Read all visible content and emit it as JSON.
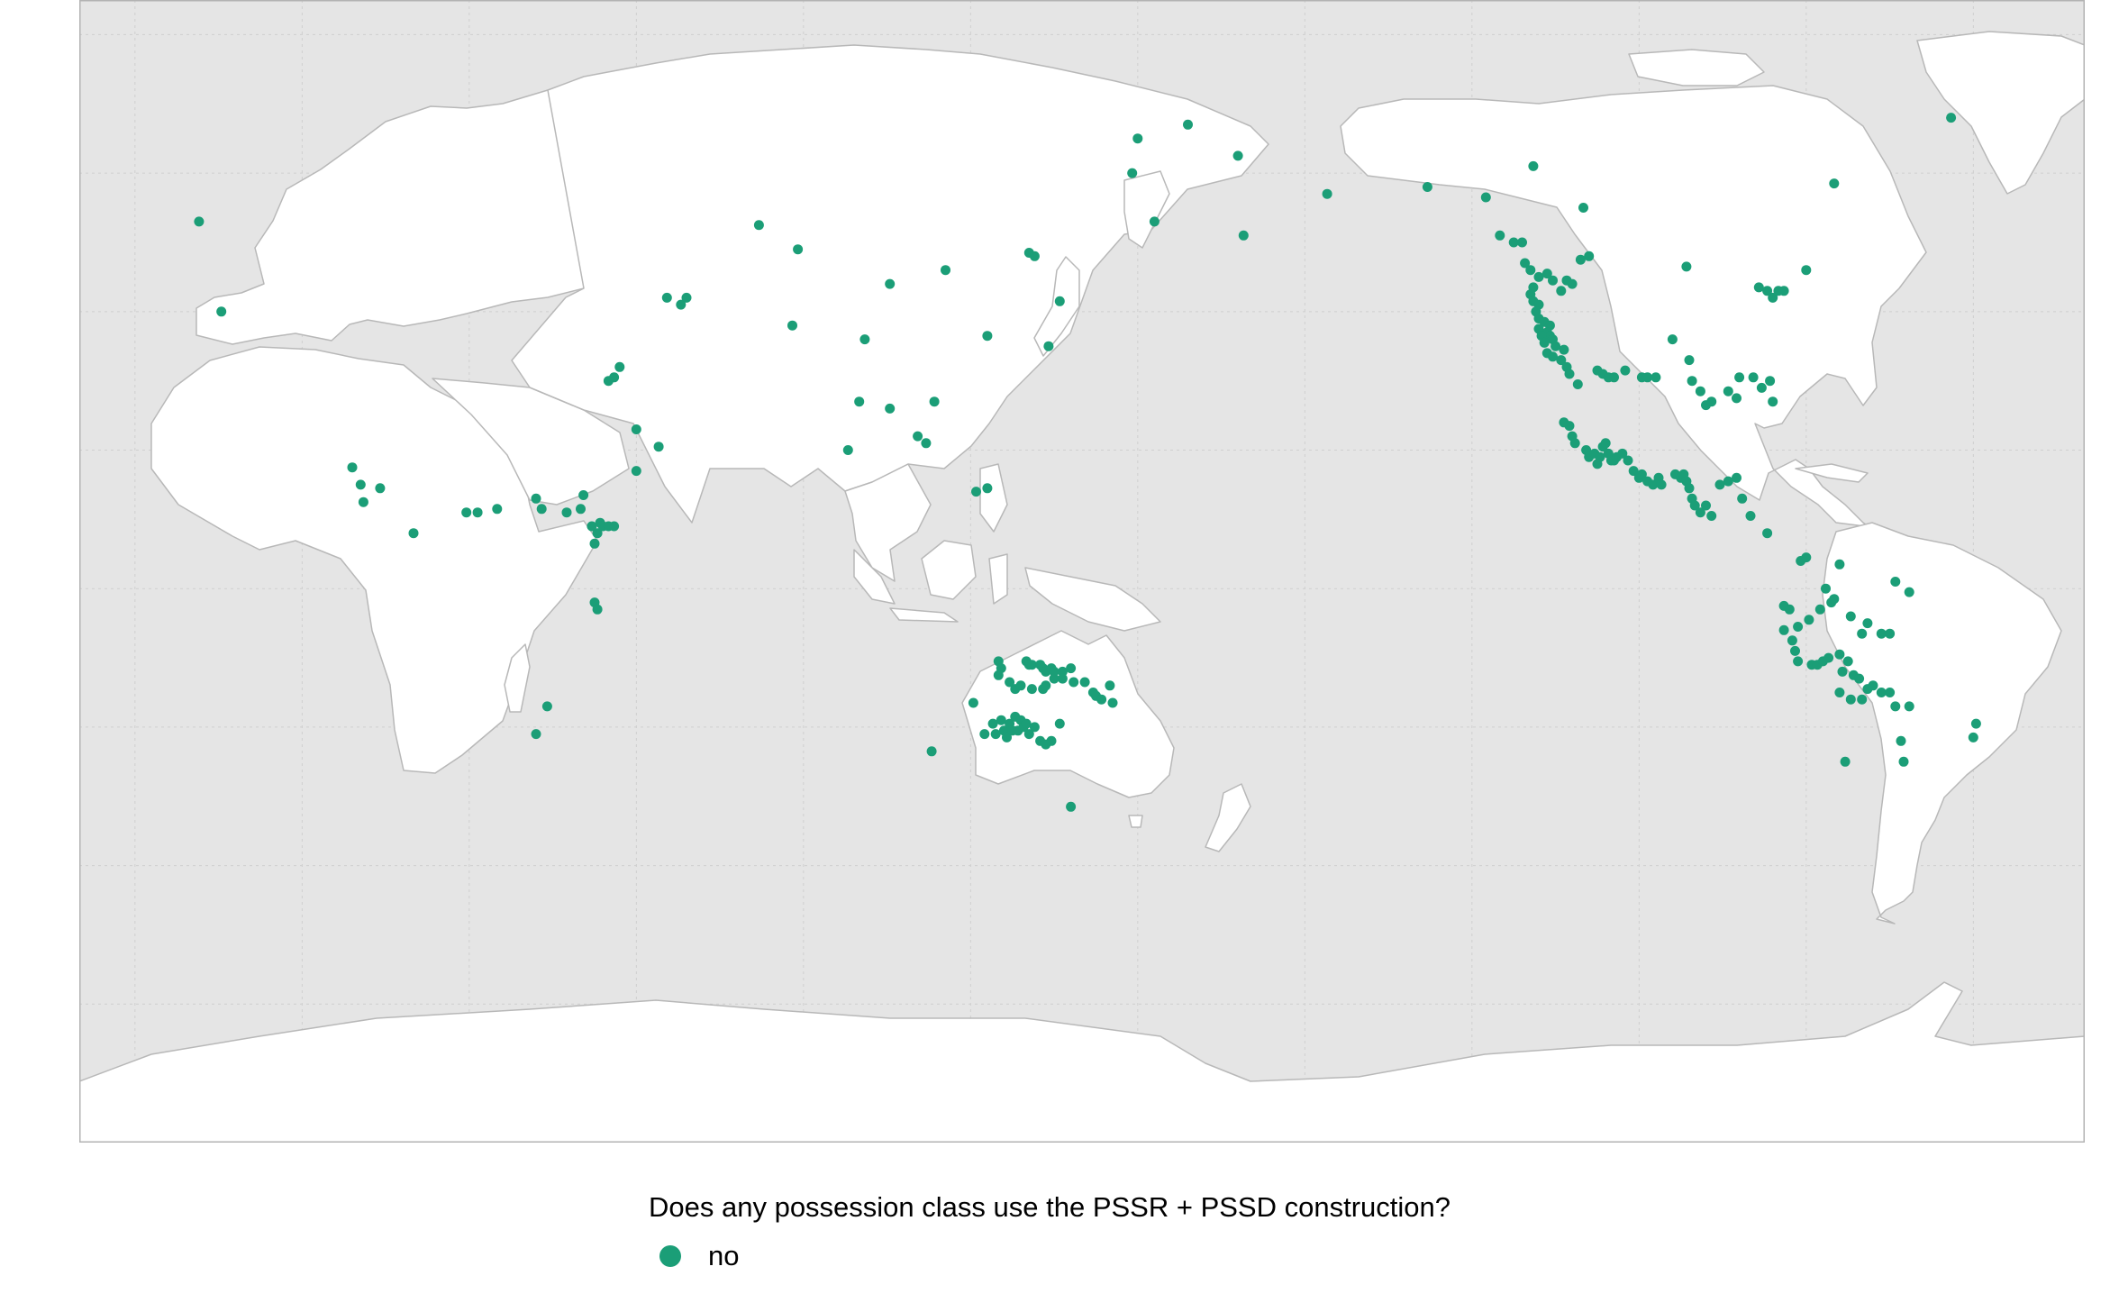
{
  "map": {
    "projection": "Equirectangular, Pacific-centred (central meridian 150°E)",
    "background_color": "#e5e5e5",
    "land_color": "#ffffff",
    "land_stroke": "#b8b8b8",
    "graticule_color": "#cfcfcf",
    "point_color": "#1b9e77",
    "points": [
      [
        -8.5,
        53.0
      ],
      [
        -4.5,
        40.0
      ],
      [
        19.0,
        17.5
      ],
      [
        20.5,
        15.0
      ],
      [
        24.0,
        14.5
      ],
      [
        21.0,
        12.5
      ],
      [
        30.0,
        8.0
      ],
      [
        39.5,
        11.0
      ],
      [
        41.5,
        11.0
      ],
      [
        45.0,
        11.5
      ],
      [
        52.0,
        13.0
      ],
      [
        53.0,
        11.5
      ],
      [
        57.5,
        11.0
      ],
      [
        60.0,
        11.5
      ],
      [
        60.5,
        13.5
      ],
      [
        62.0,
        9.0
      ],
      [
        62.5,
        6.5
      ],
      [
        63.0,
        8.0
      ],
      [
        63.5,
        9.5
      ],
      [
        64.0,
        9.0
      ],
      [
        65.0,
        9.0
      ],
      [
        66.0,
        9.0
      ],
      [
        62.5,
        -2.0
      ],
      [
        63.0,
        -3.0
      ],
      [
        54.0,
        -17.0
      ],
      [
        52.0,
        -21.0
      ],
      [
        67.0,
        32.0
      ],
      [
        66.0,
        30.5
      ],
      [
        65.0,
        30.0
      ],
      [
        70.0,
        23.0
      ],
      [
        74.0,
        20.5
      ],
      [
        70.0,
        17.0
      ],
      [
        75.5,
        42.0
      ],
      [
        78.0,
        41.0
      ],
      [
        79.0,
        42.0
      ],
      [
        92.0,
        52.5
      ],
      [
        99.0,
        49.0
      ],
      [
        111.0,
        36.0
      ],
      [
        110.0,
        27.0
      ],
      [
        115.5,
        26.0
      ],
      [
        123.5,
        27.0
      ],
      [
        108.0,
        20.0
      ],
      [
        120.5,
        22.0
      ],
      [
        122.0,
        21.0
      ],
      [
        131.0,
        14.0
      ],
      [
        133.0,
        14.5
      ],
      [
        98.0,
        38.0
      ],
      [
        115.5,
        44.0
      ],
      [
        125.5,
        46.0
      ],
      [
        133.0,
        36.5
      ],
      [
        144.0,
        35.0
      ],
      [
        140.5,
        48.5
      ],
      [
        141.5,
        48.0
      ],
      [
        146.0,
        41.5
      ],
      [
        160.0,
        65.0
      ],
      [
        159.0,
        60.0
      ],
      [
        163.0,
        53.0
      ],
      [
        169.0,
        67.0
      ],
      [
        178.0,
        62.5
      ],
      [
        179.0,
        51.0
      ],
      [
        194.0,
        57.0
      ],
      [
        212.0,
        58.0
      ],
      [
        222.5,
        56.5
      ],
      [
        240.0,
        55.0
      ],
      [
        231.0,
        61.0
      ],
      [
        225.0,
        51.0
      ],
      [
        227.5,
        50.0
      ],
      [
        229.0,
        50.0
      ],
      [
        229.5,
        47.0
      ],
      [
        230.5,
        46.0
      ],
      [
        232.0,
        45.0
      ],
      [
        233.5,
        45.5
      ],
      [
        234.5,
        44.5
      ],
      [
        236.0,
        43.0
      ],
      [
        237.0,
        44.5
      ],
      [
        238.0,
        44.0
      ],
      [
        231.0,
        43.5
      ],
      [
        230.5,
        42.5
      ],
      [
        231.0,
        41.5
      ],
      [
        232.0,
        41.0
      ],
      [
        231.5,
        40.0
      ],
      [
        232.0,
        39.0
      ],
      [
        233.0,
        38.5
      ],
      [
        234.0,
        38.0
      ],
      [
        233.5,
        37.0
      ],
      [
        234.0,
        36.5
      ],
      [
        234.5,
        36.0
      ],
      [
        235.0,
        35.0
      ],
      [
        236.5,
        34.5
      ],
      [
        232.0,
        37.5
      ],
      [
        232.5,
        36.5
      ],
      [
        233.0,
        35.5
      ],
      [
        233.5,
        34.0
      ],
      [
        234.5,
        33.5
      ],
      [
        236.0,
        33.0
      ],
      [
        237.0,
        32.0
      ],
      [
        237.5,
        31.0
      ],
      [
        239.0,
        29.5
      ],
      [
        242.5,
        31.5
      ],
      [
        243.5,
        31.0
      ],
      [
        244.5,
        30.5
      ],
      [
        245.5,
        30.5
      ],
      [
        247.5,
        31.5
      ],
      [
        250.5,
        30.5
      ],
      [
        251.5,
        30.5
      ],
      [
        253.0,
        30.5
      ],
      [
        256.0,
        36.0
      ],
      [
        259.0,
        33.0
      ],
      [
        259.5,
        30.0
      ],
      [
        261.0,
        28.5
      ],
      [
        262.0,
        26.5
      ],
      [
        263.0,
        27.0
      ],
      [
        266.0,
        28.5
      ],
      [
        267.5,
        27.5
      ],
      [
        268.0,
        30.5
      ],
      [
        270.5,
        30.5
      ],
      [
        272.0,
        29.0
      ],
      [
        273.5,
        30.0
      ],
      [
        274.0,
        27.0
      ],
      [
        271.5,
        43.5
      ],
      [
        273.0,
        43.0
      ],
      [
        274.0,
        42.0
      ],
      [
        275.0,
        43.0
      ],
      [
        276.0,
        43.0
      ],
      [
        280.0,
        46.0
      ],
      [
        285.0,
        58.5
      ],
      [
        306.0,
        68.0
      ],
      [
        258.5,
        46.5
      ],
      [
        241.0,
        48.0
      ],
      [
        239.5,
        47.5
      ],
      [
        236.5,
        24.0
      ],
      [
        237.5,
        23.5
      ],
      [
        238.0,
        22.0
      ],
      [
        238.5,
        21.0
      ],
      [
        240.5,
        20.0
      ],
      [
        241.0,
        19.0
      ],
      [
        242.0,
        19.5
      ],
      [
        242.5,
        18.0
      ],
      [
        243.0,
        19.0
      ],
      [
        243.5,
        20.5
      ],
      [
        244.0,
        21.0
      ],
      [
        244.5,
        19.5
      ],
      [
        245.0,
        18.5
      ],
      [
        245.5,
        18.5
      ],
      [
        246.0,
        19.0
      ],
      [
        247.0,
        19.5
      ],
      [
        248.0,
        18.5
      ],
      [
        249.0,
        17.0
      ],
      [
        250.0,
        16.0
      ],
      [
        250.5,
        16.5
      ],
      [
        251.5,
        15.5
      ],
      [
        252.5,
        15.0
      ],
      [
        253.5,
        16.0
      ],
      [
        254.0,
        15.0
      ],
      [
        256.5,
        16.5
      ],
      [
        257.5,
        16.0
      ],
      [
        258.0,
        16.5
      ],
      [
        258.5,
        15.5
      ],
      [
        259.0,
        14.5
      ],
      [
        259.5,
        13.0
      ],
      [
        260.0,
        12.0
      ],
      [
        261.0,
        11.0
      ],
      [
        263.0,
        10.5
      ],
      [
        262.0,
        12.0
      ],
      [
        264.5,
        15.0
      ],
      [
        266.0,
        15.5
      ],
      [
        267.5,
        16.0
      ],
      [
        268.5,
        13.0
      ],
      [
        270.0,
        10.5
      ],
      [
        273.0,
        8.0
      ],
      [
        279.0,
        4.0
      ],
      [
        280.0,
        4.5
      ],
      [
        286.0,
        3.5
      ],
      [
        296.0,
        1.0
      ],
      [
        298.5,
        -0.5
      ],
      [
        283.5,
        0.0
      ],
      [
        284.5,
        -2.0
      ],
      [
        276.0,
        -2.5
      ],
      [
        277.0,
        -3.0
      ],
      [
        280.5,
        -4.5
      ],
      [
        278.5,
        -5.5
      ],
      [
        282.5,
        -3.0
      ],
      [
        285.0,
        -1.5
      ],
      [
        288.0,
        -4.0
      ],
      [
        290.0,
        -6.5
      ],
      [
        291.0,
        -5.0
      ],
      [
        293.5,
        -6.5
      ],
      [
        295.0,
        -6.5
      ],
      [
        276.0,
        -6.0
      ],
      [
        277.5,
        -7.5
      ],
      [
        278.0,
        -9.0
      ],
      [
        278.5,
        -10.5
      ],
      [
        281.0,
        -11.0
      ],
      [
        282.0,
        -11.0
      ],
      [
        283.0,
        -10.5
      ],
      [
        284.0,
        -10.0
      ],
      [
        286.0,
        -9.5
      ],
      [
        287.5,
        -10.5
      ],
      [
        286.5,
        -12.0
      ],
      [
        288.5,
        -12.5
      ],
      [
        289.5,
        -13.0
      ],
      [
        286.0,
        -15.0
      ],
      [
        288.0,
        -16.0
      ],
      [
        290.0,
        -16.0
      ],
      [
        291.0,
        -14.5
      ],
      [
        292.0,
        -14.0
      ],
      [
        293.5,
        -15.0
      ],
      [
        295.0,
        -15.0
      ],
      [
        296.0,
        -17.0
      ],
      [
        298.5,
        -17.0
      ],
      [
        297.0,
        -22.0
      ],
      [
        297.5,
        -25.0
      ],
      [
        287.0,
        -25.0
      ],
      [
        310.5,
        -19.5
      ],
      [
        310.0,
        -21.5
      ],
      [
        130.5,
        -16.5
      ],
      [
        123.0,
        -23.5
      ],
      [
        134.0,
        -19.5
      ],
      [
        132.5,
        -21.0
      ],
      [
        134.5,
        -21.0
      ],
      [
        135.5,
        -19.0
      ],
      [
        136.0,
        -20.5
      ],
      [
        136.5,
        -21.5
      ],
      [
        137.0,
        -19.5
      ],
      [
        137.5,
        -20.5
      ],
      [
        138.0,
        -18.5
      ],
      [
        138.5,
        -20.5
      ],
      [
        139.0,
        -19.0
      ],
      [
        139.5,
        -20.0
      ],
      [
        140.0,
        -19.5
      ],
      [
        140.5,
        -21.0
      ],
      [
        141.5,
        -20.0
      ],
      [
        142.5,
        -22.0
      ],
      [
        143.5,
        -22.5
      ],
      [
        144.5,
        -22.0
      ],
      [
        146.0,
        -19.5
      ],
      [
        148.0,
        -31.5
      ],
      [
        135.0,
        -10.5
      ],
      [
        135.5,
        -11.5
      ],
      [
        140.0,
        -10.5
      ],
      [
        140.5,
        -11.0
      ],
      [
        141.0,
        -11.0
      ],
      [
        142.5,
        -11.0
      ],
      [
        143.0,
        -11.5
      ],
      [
        143.5,
        -12.0
      ],
      [
        144.5,
        -11.5
      ],
      [
        145.0,
        -13.0
      ],
      [
        148.0,
        -11.5
      ],
      [
        148.5,
        -13.5
      ],
      [
        150.5,
        -13.5
      ],
      [
        152.0,
        -15.0
      ],
      [
        152.5,
        -15.5
      ],
      [
        153.5,
        -16.0
      ],
      [
        155.5,
        -16.5
      ],
      [
        155.0,
        -14.0
      ],
      [
        141.0,
        -14.5
      ],
      [
        143.0,
        -14.5
      ],
      [
        146.5,
        -12.0
      ],
      [
        146.5,
        -13.0
      ],
      [
        135.0,
        -12.5
      ],
      [
        137.0,
        -13.5
      ],
      [
        138.0,
        -14.5
      ],
      [
        139.0,
        -14.0
      ],
      [
        143.5,
        -14.0
      ],
      [
        145.0,
        -12.0
      ]
    ]
  },
  "legend": {
    "title": "Does any possession class use the PSSR + PSSD construction?",
    "items": [
      {
        "label": "no",
        "color": "#1b9e77"
      }
    ]
  }
}
